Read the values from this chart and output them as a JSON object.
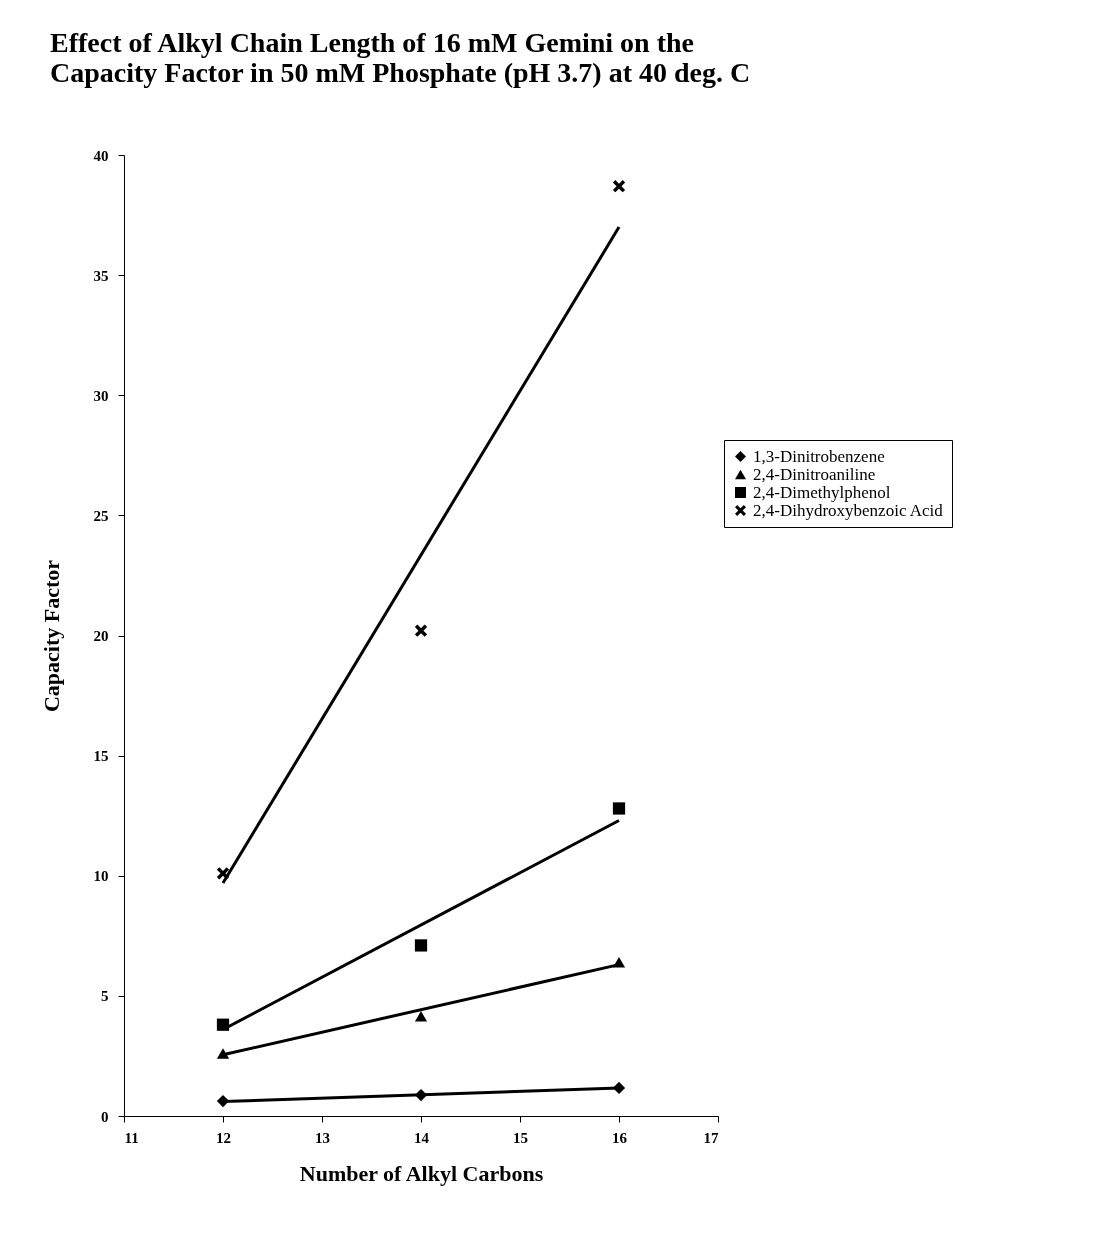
{
  "chart_data": {
    "type": "scatter",
    "title": [
      "Effect of Alkyl Chain Length of 16 mM Gemini on the",
      "Capacity Factor in 50 mM Phosphate (pH 3.7) at 40 deg. C"
    ],
    "xlabel": "Number of Alkyl Carbons",
    "ylabel": "Capacity Factor",
    "xlim": [
      11,
      17
    ],
    "xticks": [
      11,
      12,
      13,
      14,
      15,
      16,
      17
    ],
    "ylim": [
      0,
      40
    ],
    "yticks": [
      0,
      5,
      10,
      15,
      20,
      25,
      30,
      35,
      40
    ],
    "grid": false,
    "legend": "right",
    "series": [
      {
        "name": "1,3-Dinitrobenzene",
        "marker": "diamond",
        "color": "#000000",
        "x": [
          12,
          14,
          16
        ],
        "values": [
          0.62,
          0.87,
          1.17
        ]
      },
      {
        "name": "2,4-Dinitroaniline",
        "marker": "triangle",
        "color": "#000000",
        "x": [
          12,
          14,
          16
        ],
        "values": [
          2.6,
          4.15,
          6.4
        ]
      },
      {
        "name": "2,4-Dimethylphenol",
        "marker": "square",
        "color": "#000000",
        "x": [
          12,
          14,
          16
        ],
        "values": [
          3.8,
          7.1,
          12.8
        ]
      },
      {
        "name": "2,4-Dihydroxybenzoic Acid",
        "marker": "cross",
        "color": "#000000",
        "x": [
          12,
          14,
          16
        ],
        "values": [
          10.1,
          20.2,
          38.7
        ]
      },
      {
        "type": "line",
        "marker": "none",
        "color": "#000000",
        "x": [
          12,
          16
        ],
        "values": [
          0.6,
          1.17
        ]
      },
      {
        "type": "line",
        "marker": "none",
        "color": "#000000",
        "x": [
          12,
          16
        ],
        "values": [
          2.55,
          6.3
        ]
      },
      {
        "type": "line",
        "marker": "none",
        "color": "#000000",
        "x": [
          12,
          16
        ],
        "values": [
          3.6,
          12.3
        ]
      },
      {
        "type": "line",
        "marker": "none",
        "color": "#000000",
        "x": [
          12,
          16
        ],
        "values": [
          9.7,
          37.0
        ]
      }
    ]
  }
}
